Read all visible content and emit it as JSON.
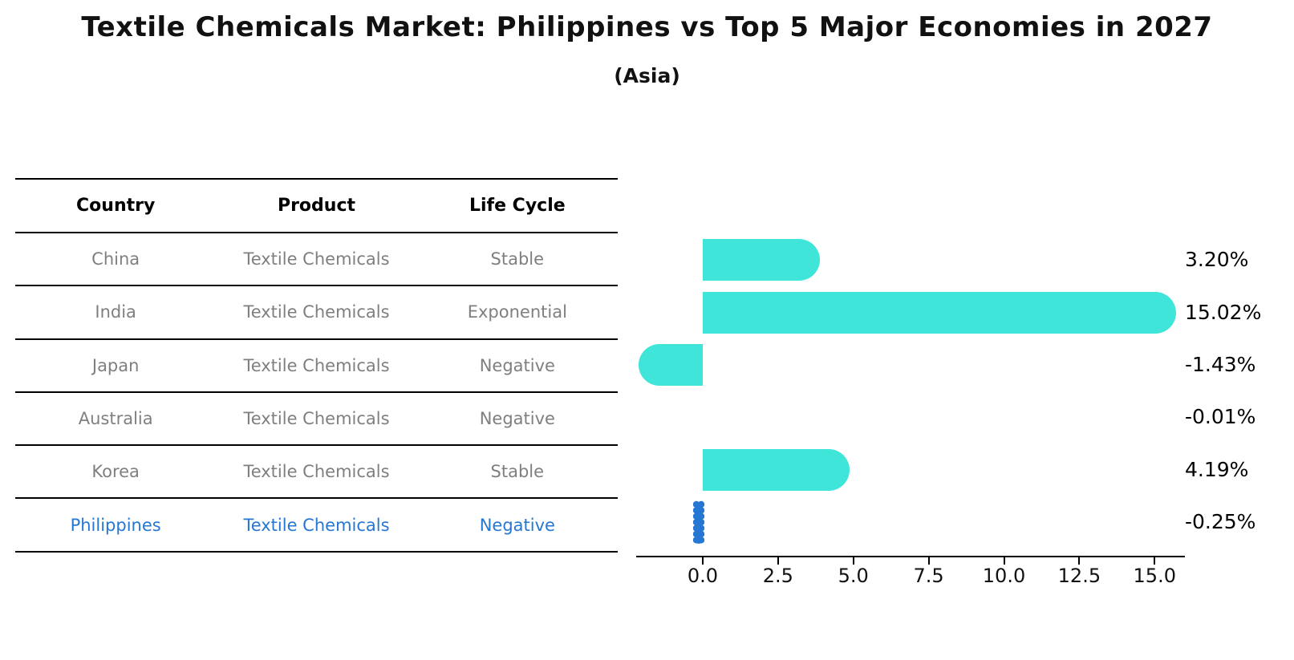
{
  "page": {
    "title": "Textile Chemicals Market: Philippines vs Top 5 Major Economies in 2027",
    "subtitle": "(Asia)"
  },
  "table": {
    "headers": [
      "Country",
      "Product",
      "Life Cycle"
    ],
    "rows": [
      {
        "country": "China",
        "product": "Textile Chemicals",
        "life_cycle": "Stable",
        "highlighted": false
      },
      {
        "country": "India",
        "product": "Textile Chemicals",
        "life_cycle": "Exponential",
        "highlighted": false
      },
      {
        "country": "Japan",
        "product": "Textile Chemicals",
        "life_cycle": "Negative",
        "highlighted": false
      },
      {
        "country": "Australia",
        "product": "Textile Chemicals",
        "life_cycle": "Negative",
        "highlighted": false
      },
      {
        "country": "Korea",
        "product": "Textile Chemicals",
        "life_cycle": "Stable",
        "highlighted": false
      },
      {
        "country": "Philippines",
        "product": "Textile Chemicals",
        "life_cycle": "Negative",
        "highlighted": true
      }
    ]
  },
  "chart_data": {
    "type": "bar",
    "orientation": "horizontal",
    "title": "Textile Chemicals Market: Philippines vs Top 5 Major Economies in 2027 (Asia)",
    "categories": [
      "China",
      "India",
      "Japan",
      "Australia",
      "Korea",
      "Philippines"
    ],
    "values": [
      3.2,
      15.02,
      -1.43,
      -0.01,
      4.19,
      -0.25
    ],
    "value_labels": [
      "3.20%",
      "15.02%",
      "-1.43%",
      "-0.01%",
      "4.19%",
      "-0.25%"
    ],
    "x_tick_labels": [
      "0.0",
      "2.5",
      "5.0",
      "7.5",
      "10.0",
      "12.5",
      "15.0"
    ],
    "x_tick_values": [
      0,
      2.5,
      5,
      7.5,
      10,
      12.5,
      15
    ],
    "xlim": [
      -2.2,
      16.0
    ],
    "grid": false,
    "legend": null,
    "bar_color": "#40E5D9",
    "highlight_color": "#2677D4",
    "highlight_index": 5
  },
  "colors": {
    "bar": "#40E5D9",
    "highlight_blue": "#2677D4",
    "table_text_gray": "#7f7f7f",
    "line_black": "#000000",
    "title_text": "#111111"
  }
}
